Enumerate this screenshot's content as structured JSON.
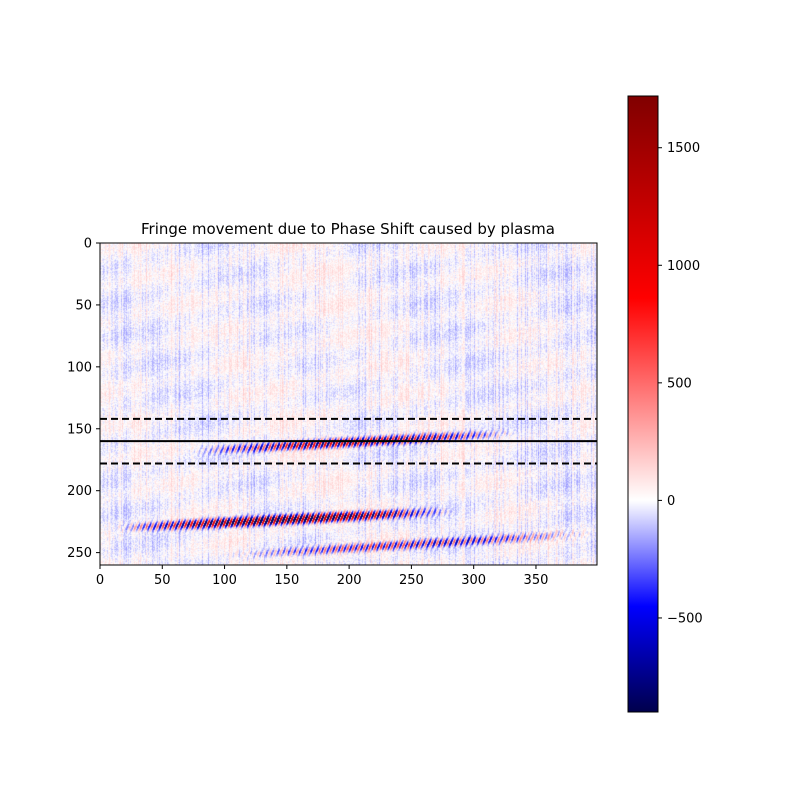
{
  "chart_data": {
    "type": "heatmap",
    "title": "Fringe movement due to Phase Shift caused by plasma",
    "colormap": "seismic",
    "xlim": [
      0,
      399
    ],
    "ylim": [
      260,
      0
    ],
    "x_ticks": [
      0,
      50,
      100,
      150,
      200,
      250,
      300,
      350
    ],
    "y_ticks": [
      0,
      50,
      100,
      150,
      200,
      250
    ],
    "y_axis_inverted": true,
    "colorbar": {
      "range": [
        -900,
        1720
      ],
      "ticks": [
        -500,
        0,
        500,
        1000,
        1500
      ],
      "tick_labels": [
        "−500",
        "0",
        "500",
        "1000",
        "1500"
      ],
      "colors": [
        "#00004c",
        "#0000ff",
        "#ffffff",
        "#ff0000",
        "#800000"
      ]
    },
    "horizontal_lines": [
      {
        "y": 142,
        "style": "dashed",
        "color": "#000000"
      },
      {
        "y": 160,
        "style": "solid",
        "color": "#000000"
      },
      {
        "y": 178,
        "style": "dashed",
        "color": "#000000"
      }
    ],
    "fringe_bands": [
      {
        "y_start": 168,
        "y_end": 153,
        "x_start": 70,
        "x_end": 335,
        "peak_amplitude": 1100
      },
      {
        "y_start": 230,
        "y_end": 216,
        "x_start": 10,
        "x_end": 285,
        "peak_amplitude": 1600
      },
      {
        "y_start": 252,
        "y_end": 234,
        "x_start": 100,
        "x_end": 399,
        "peak_amplitude": 700
      }
    ],
    "grid": false,
    "xlabel": "",
    "ylabel": ""
  }
}
